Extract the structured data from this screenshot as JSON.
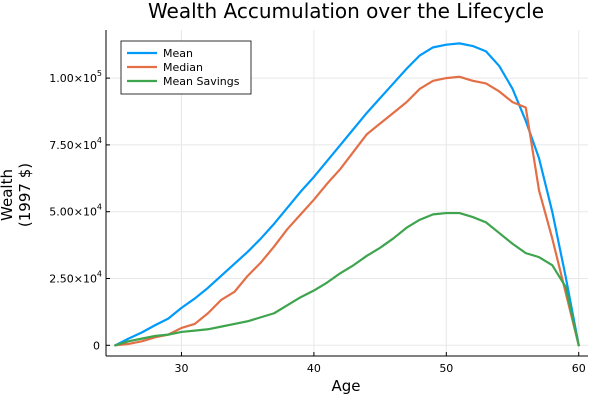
{
  "chart_data": {
    "type": "line",
    "title": "Wealth Accumulation over the Lifecycle",
    "xlabel": "Age",
    "ylabel_lines": [
      "Wealth",
      "(1997 $)"
    ],
    "xlim": [
      24.3,
      60.7
    ],
    "ylim": [
      -4000,
      118000
    ],
    "x_ticks": [
      {
        "value": 30,
        "label": "30"
      },
      {
        "value": 40,
        "label": "40"
      },
      {
        "value": 50,
        "label": "50"
      },
      {
        "value": 60,
        "label": "60"
      }
    ],
    "y_ticks": [
      {
        "value": 0,
        "mantissa": "0",
        "base": "",
        "exp": ""
      },
      {
        "value": 25000,
        "mantissa": "2.50×10",
        "base": "",
        "exp": "4"
      },
      {
        "value": 50000,
        "mantissa": "5.00×10",
        "base": "",
        "exp": "4"
      },
      {
        "value": 75000,
        "mantissa": "7.50×10",
        "base": "",
        "exp": "4"
      },
      {
        "value": 100000,
        "mantissa": "1.00×10",
        "base": "",
        "exp": "5"
      }
    ],
    "grid": true,
    "legend_position": "top-left",
    "x": [
      25,
      26,
      27,
      28,
      29,
      30,
      31,
      32,
      33,
      34,
      35,
      36,
      37,
      38,
      39,
      40,
      41,
      42,
      43,
      44,
      45,
      46,
      47,
      48,
      49,
      50,
      51,
      52,
      53,
      54,
      55,
      56,
      57,
      58,
      59,
      60
    ],
    "series": [
      {
        "name": "Mean",
        "color": "#009AFA",
        "values": [
          0,
          2500,
          4800,
          7500,
          10000,
          14000,
          17500,
          21500,
          26000,
          30500,
          35000,
          40000,
          45500,
          51500,
          57500,
          63000,
          69000,
          75000,
          81000,
          87000,
          92500,
          98000,
          103500,
          108500,
          111500,
          112500,
          113000,
          112000,
          110000,
          104500,
          96000,
          84000,
          70000,
          50000,
          26000,
          0
        ]
      },
      {
        "name": "Median",
        "color": "#E36F47",
        "values": [
          0,
          500,
          1500,
          3000,
          4000,
          6500,
          8000,
          12000,
          17000,
          20000,
          26000,
          31000,
          37000,
          43500,
          49000,
          54500,
          60500,
          66000,
          72500,
          79000,
          83000,
          87000,
          91000,
          96000,
          99000,
          100000,
          100500,
          99000,
          98000,
          95000,
          91000,
          89000,
          58000,
          40000,
          20000,
          0
        ]
      },
      {
        "name": "Mean Savings",
        "color": "#3EA44E",
        "values": [
          0,
          1500,
          2500,
          3500,
          4000,
          5000,
          5500,
          6000,
          7000,
          8000,
          9000,
          10500,
          12000,
          15000,
          18000,
          20500,
          23500,
          27000,
          30000,
          33500,
          36500,
          40000,
          44000,
          47000,
          49000,
          49500,
          49500,
          48000,
          46000,
          42000,
          38000,
          34500,
          33000,
          30000,
          22000,
          0
        ]
      }
    ]
  }
}
